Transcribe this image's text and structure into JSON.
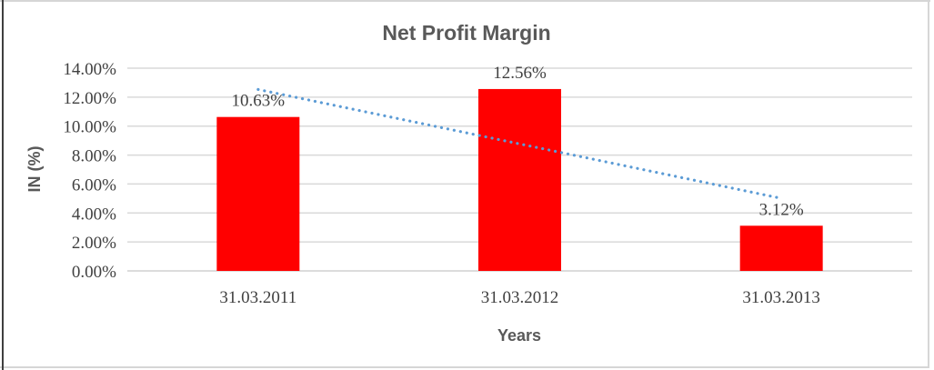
{
  "chart_data": {
    "type": "bar",
    "title": "Net Profit Margin",
    "categories": [
      "31.03.2011",
      "31.03.2012",
      "31.03.2013"
    ],
    "values": [
      10.63,
      12.56,
      3.12
    ],
    "data_labels": [
      "10.63%",
      "12.56%",
      "3.12%"
    ],
    "xlabel": "Years",
    "ylabel": "IN (%)",
    "ylim": [
      0,
      14
    ],
    "y_tick_step": 2,
    "y_tick_labels": [
      "0.00%",
      "2.00%",
      "4.00%",
      "6.00%",
      "8.00%",
      "10.00%",
      "12.00%",
      "14.00%"
    ],
    "grid": true,
    "legend": false,
    "trendline": {
      "type": "linear",
      "style": "dotted",
      "start_value": 12.53,
      "end_value": 5.01
    }
  },
  "colors": {
    "bar": "#FF0000",
    "trendline": "#5B9BD5",
    "gridline": "#D9D9D9",
    "axis_line": "#D0D0D0",
    "title_text": "#595959",
    "axis_title_text": "#595959",
    "tick_text": "#404040",
    "data_label_text": "#404040",
    "frame_light": "#D6D6D6",
    "frame_dark": "#3F3F3F"
  }
}
